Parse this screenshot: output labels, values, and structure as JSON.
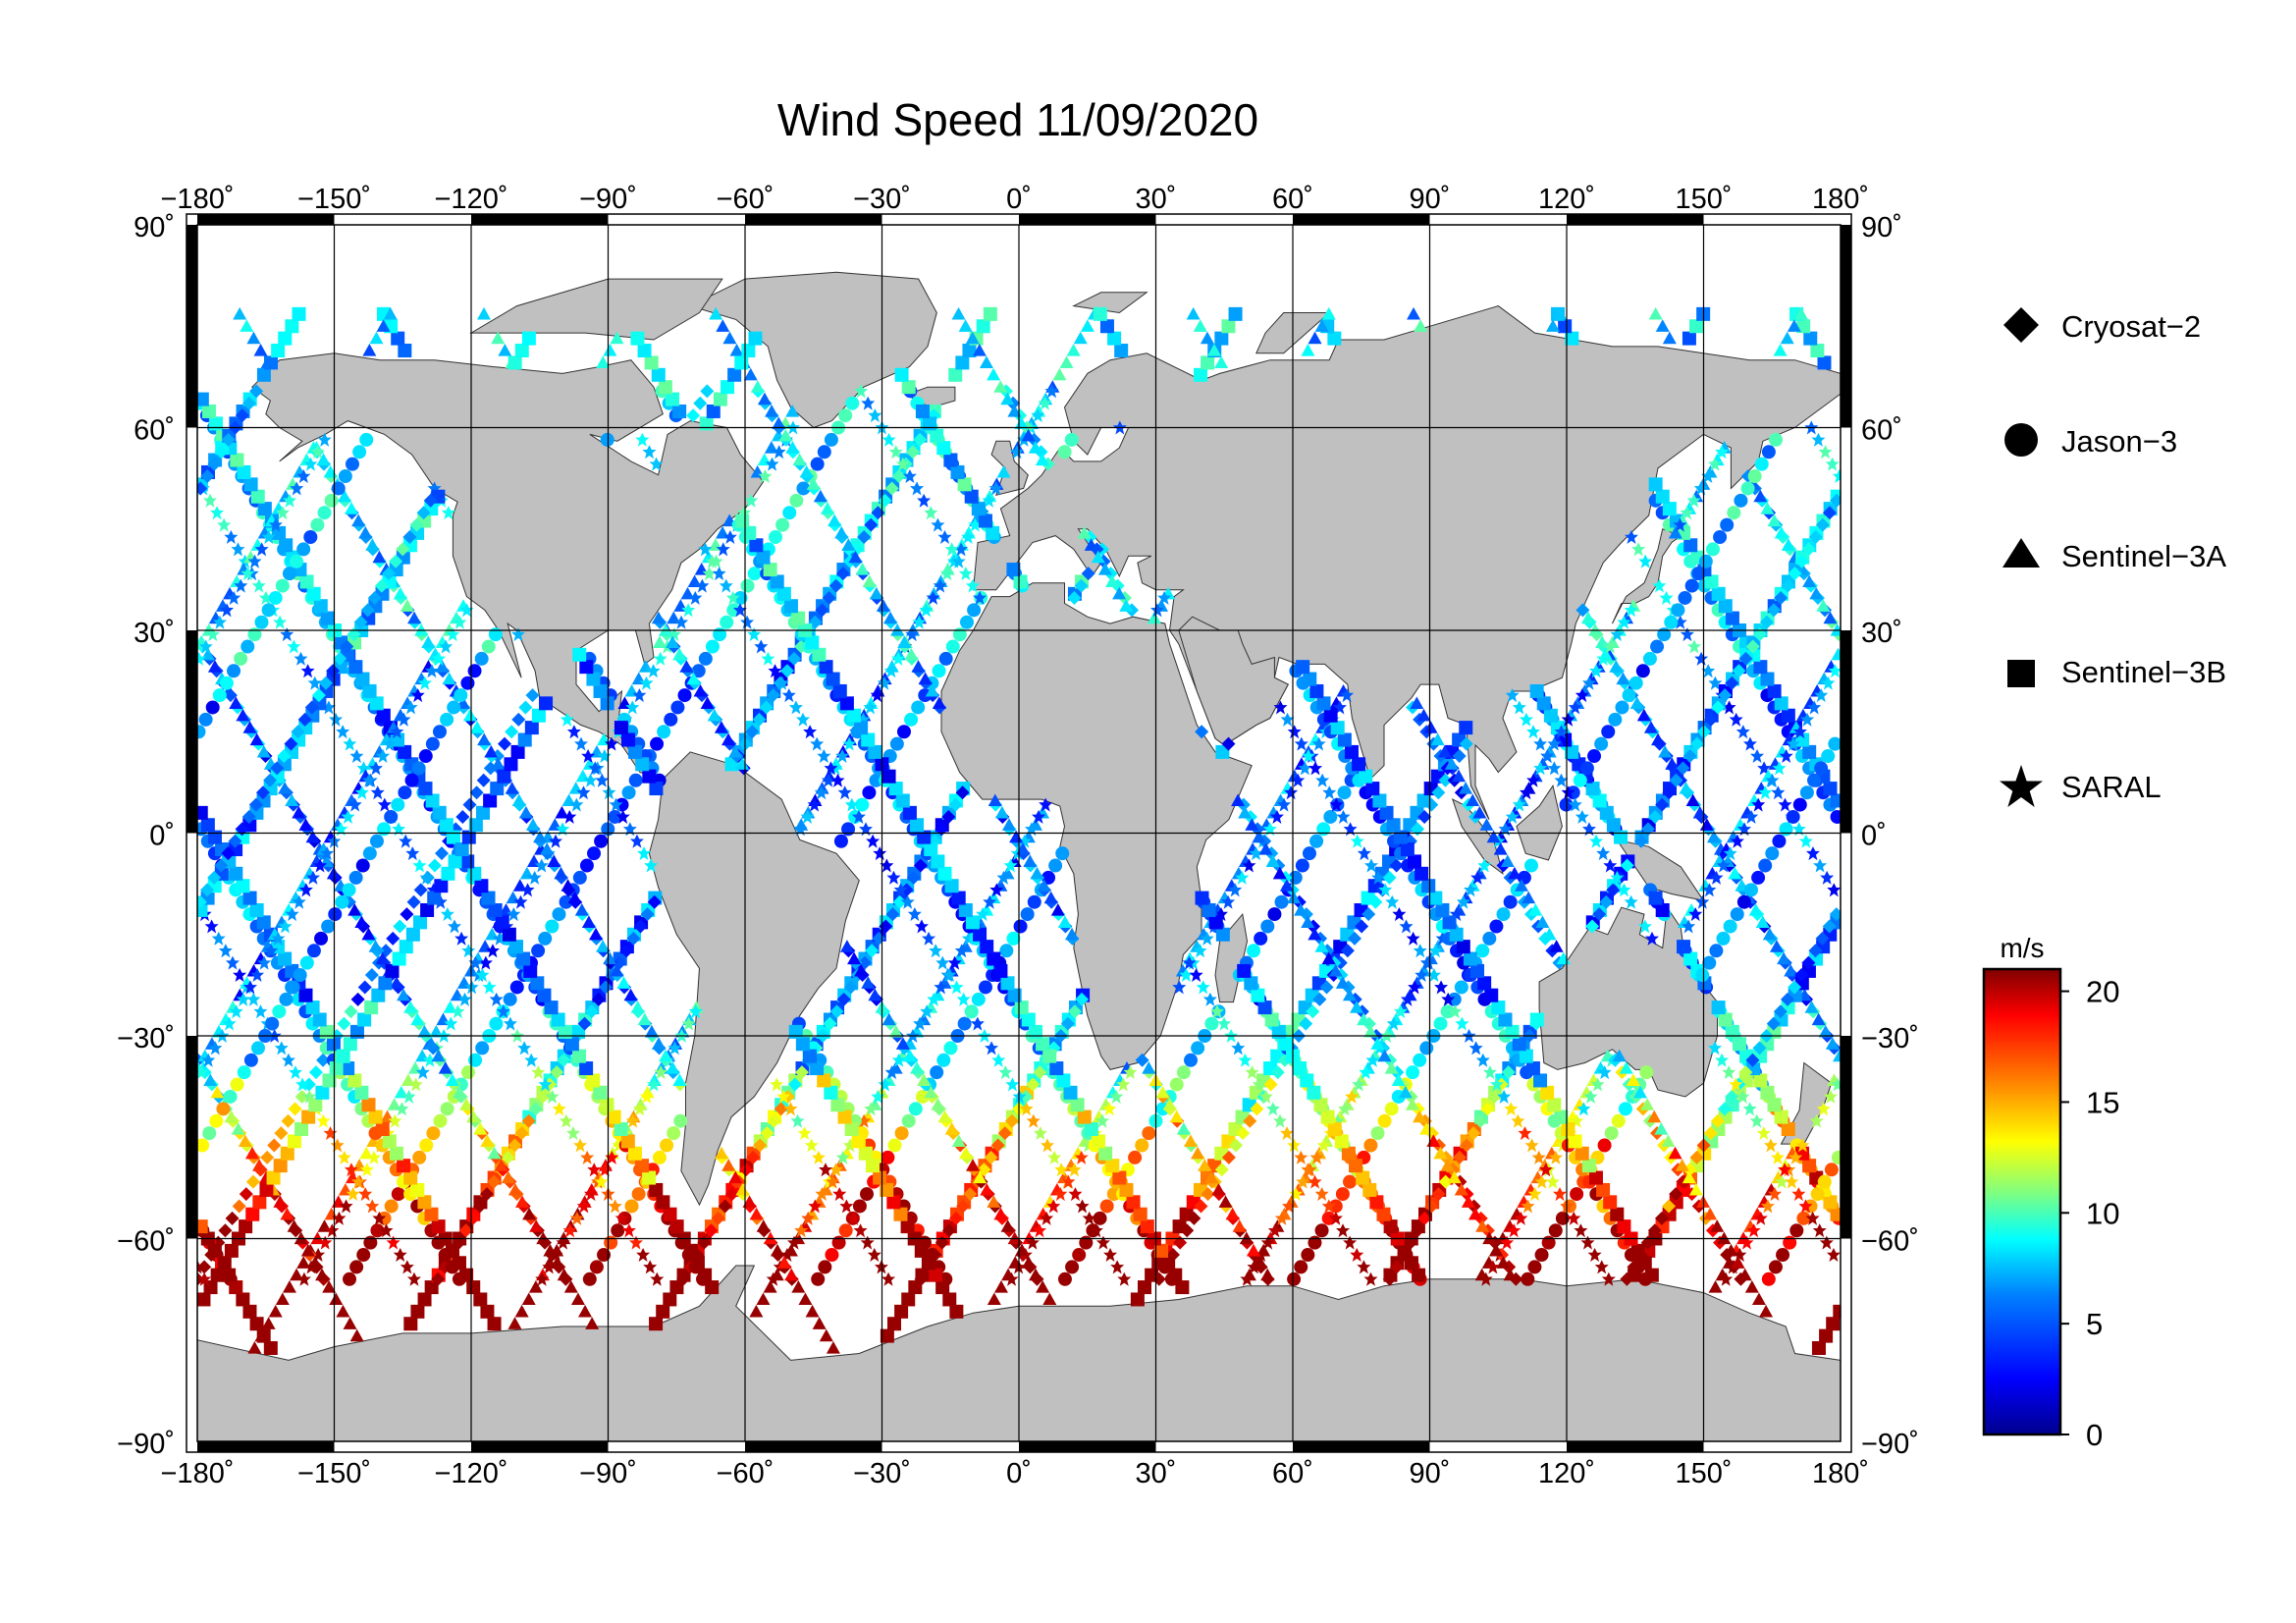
{
  "map": {
    "title": "Wind Speed 11/09/2020",
    "lon_ticks": [
      "−180˚",
      "−150˚",
      "−120˚",
      "−90˚",
      "−60˚",
      "−30˚",
      "0˚",
      "30˚",
      "60˚",
      "90˚",
      "120˚",
      "150˚",
      "180˚"
    ],
    "lat_ticks_left": [
      "90˚",
      "60˚",
      "30˚",
      "0˚",
      "−30˚",
      "−60˚",
      "−90˚"
    ],
    "lat_ticks_right": [
      "90˚",
      "60˚",
      "30˚",
      "0˚",
      "−30˚",
      "−60˚",
      "−90˚"
    ],
    "land_color": "#c0c0c0",
    "ocean_color": "#ffffff",
    "grid": true
  },
  "legend": {
    "items": [
      {
        "label": "Cryosat−2",
        "symbol": "diamond"
      },
      {
        "label": "Jason−3",
        "symbol": "circle"
      },
      {
        "label": "Sentinel−3A",
        "symbol": "triangle"
      },
      {
        "label": "Sentinel−3B",
        "symbol": "square"
      },
      {
        "label": "SARAL",
        "symbol": "star"
      }
    ]
  },
  "colorbar": {
    "unit": "m/s",
    "ticks": [
      "20",
      "15",
      "10",
      "5",
      "0"
    ],
    "min": 0,
    "max": 21,
    "colors": [
      "#00008f",
      "#0000ff",
      "#0080ff",
      "#00ffff",
      "#80ff80",
      "#ffff00",
      "#ff8000",
      "#ff0000",
      "#800000"
    ]
  },
  "chart_data": {
    "type": "scatter",
    "title": "Wind Speed 11/09/2020",
    "xlabel": "",
    "ylabel": "",
    "xlim": [
      -180,
      180
    ],
    "ylim": [
      -90,
      90
    ],
    "colorbar_label": "m/s",
    "colorbar_range": [
      0,
      21
    ],
    "series": [
      {
        "name": "Cryosat−2",
        "symbol": "diamond"
      },
      {
        "name": "Jason−3",
        "symbol": "circle"
      },
      {
        "name": "Sentinel−3A",
        "symbol": "triangle"
      },
      {
        "name": "Sentinel−3B",
        "symbol": "square"
      },
      {
        "name": "SARAL",
        "symbol": "star"
      }
    ]
  }
}
